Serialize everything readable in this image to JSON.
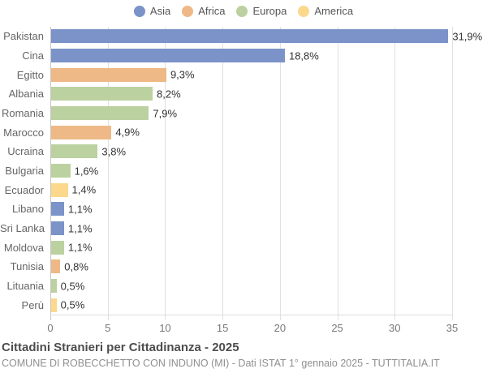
{
  "legend": {
    "items": [
      {
        "label": "Asia",
        "color": "#7b93c8"
      },
      {
        "label": "Africa",
        "color": "#eeb986"
      },
      {
        "label": "Europa",
        "color": "#bbd1a0"
      },
      {
        "label": "America",
        "color": "#fbd88c"
      }
    ]
  },
  "chart_data": {
    "type": "bar",
    "orientation": "horizontal",
    "title": "Cittadini Stranieri per Cittadinanza - 2025",
    "categories": [
      "Pakistan",
      "Cina",
      "Egitto",
      "Albania",
      "Romania",
      "Marocco",
      "Ucraina",
      "Bulgaria",
      "Ecuador",
      "Libano",
      "Sri Lanka",
      "Moldova",
      "Tunisia",
      "Lituania",
      "Perù"
    ],
    "values": [
      31.9,
      18.8,
      9.3,
      8.2,
      7.9,
      4.9,
      3.8,
      1.6,
      1.4,
      1.1,
      1.1,
      1.1,
      0.8,
      0.5,
      0.5
    ],
    "value_labels": [
      "31,9%",
      "18,8%",
      "9,3%",
      "8,2%",
      "7,9%",
      "4,9%",
      "3,8%",
      "1,6%",
      "1,4%",
      "1,1%",
      "1,1%",
      "1,1%",
      "0,8%",
      "0,5%",
      "0,5%"
    ],
    "groups": [
      "Asia",
      "Asia",
      "Africa",
      "Europa",
      "Europa",
      "Africa",
      "Europa",
      "Europa",
      "America",
      "Asia",
      "Asia",
      "Europa",
      "Africa",
      "Europa",
      "America"
    ],
    "x_ticks": [
      0,
      5,
      10,
      15,
      20,
      25,
      30,
      35
    ],
    "x_tick_labels": [
      "0",
      "5",
      "10",
      "15",
      "20",
      "25",
      "30",
      "35"
    ],
    "xlim": [
      0,
      35
    ],
    "xlabel": "",
    "ylabel": "",
    "grid": true,
    "legend_position": "top",
    "unit": "%"
  },
  "footer": {
    "title": "Cittadini Stranieri per Cittadinanza - 2025",
    "subtitle": "COMUNE DI ROBECCHETTO CON INDUNO (MI) - Dati ISTAT 1° gennaio 2025 - TUTTITALIA.IT"
  }
}
